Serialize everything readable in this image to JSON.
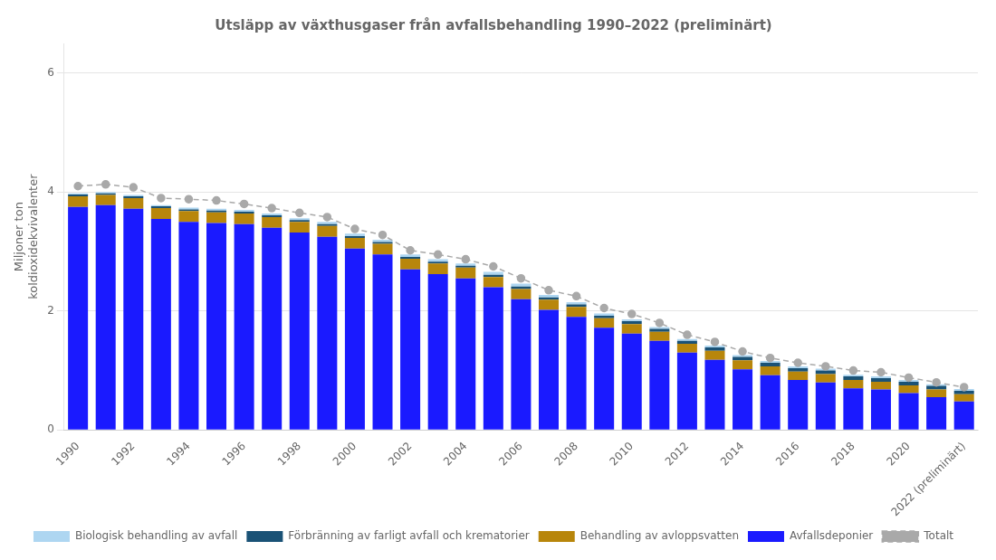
{
  "chart_data": {
    "type": "bar",
    "title": "Utsläpp av växthusgaser från avfallsbehandling 1990–2022 (preliminärt)",
    "y_label": "Miljoner ton\nkoldioxidekvivalenter",
    "categories": [
      "1990",
      null,
      "1992",
      null,
      "1994",
      null,
      "1996",
      null,
      "1998",
      null,
      "2000",
      null,
      "2002",
      null,
      "2004",
      null,
      "2006",
      null,
      "2008",
      null,
      "2010",
      null,
      "2012",
      null,
      "2014",
      null,
      "2016",
      null,
      "2018",
      null,
      "2020",
      null,
      "2022 (preliminärt)"
    ],
    "series": [
      {
        "name": "Avfallsdeponier",
        "type": "bar",
        "color": "#1a1aff",
        "values": [
          3.75,
          3.78,
          3.72,
          3.55,
          3.5,
          3.48,
          3.46,
          3.4,
          3.32,
          3.25,
          3.05,
          2.95,
          2.7,
          2.62,
          2.55,
          2.4,
          2.2,
          2.02,
          1.9,
          1.72,
          1.62,
          1.5,
          1.3,
          1.18,
          1.02,
          0.92,
          0.84,
          0.8,
          0.7,
          0.68,
          0.62,
          0.55,
          0.48
        ]
      },
      {
        "name": "Behandling av avloppsvatten",
        "type": "bar",
        "color": "#B8860B",
        "values": [
          0.18,
          0.17,
          0.18,
          0.18,
          0.18,
          0.18,
          0.18,
          0.18,
          0.18,
          0.18,
          0.18,
          0.18,
          0.18,
          0.18,
          0.18,
          0.17,
          0.17,
          0.17,
          0.17,
          0.16,
          0.16,
          0.15,
          0.15,
          0.15,
          0.15,
          0.15,
          0.14,
          0.14,
          0.14,
          0.13,
          0.13,
          0.13,
          0.12
        ]
      },
      {
        "name": "Förbränning av farligt avfall och krematorier",
        "type": "bar",
        "color": "#1a5276",
        "values": [
          0.03,
          0.03,
          0.03,
          0.03,
          0.03,
          0.03,
          0.03,
          0.03,
          0.03,
          0.03,
          0.03,
          0.03,
          0.03,
          0.03,
          0.03,
          0.04,
          0.04,
          0.04,
          0.04,
          0.04,
          0.05,
          0.05,
          0.05,
          0.06,
          0.06,
          0.06,
          0.06,
          0.06,
          0.06,
          0.06,
          0.06,
          0.06,
          0.06
        ]
      },
      {
        "name": "Biologisk behandling av avfall",
        "type": "bar",
        "color": "#AED6F1",
        "values": [
          0.02,
          0.02,
          0.02,
          0.02,
          0.03,
          0.03,
          0.03,
          0.03,
          0.03,
          0.04,
          0.04,
          0.04,
          0.04,
          0.04,
          0.04,
          0.05,
          0.05,
          0.04,
          0.04,
          0.04,
          0.03,
          0.03,
          0.03,
          0.03,
          0.03,
          0.03,
          0.03,
          0.03,
          0.03,
          0.03,
          0.03,
          0.03,
          0.03
        ]
      },
      {
        "name": "Totalt",
        "type": "line",
        "color": "#A9A9A9",
        "line_style": "dashed",
        "marker": "circle",
        "values": [
          4.1,
          4.13,
          4.08,
          3.9,
          3.88,
          3.86,
          3.8,
          3.73,
          3.65,
          3.58,
          3.38,
          3.28,
          3.02,
          2.95,
          2.87,
          2.75,
          2.55,
          2.35,
          2.25,
          2.05,
          1.95,
          1.8,
          1.6,
          1.48,
          1.32,
          1.21,
          1.13,
          1.07,
          1.0,
          0.97,
          0.88,
          0.8,
          0.72
        ]
      }
    ],
    "stacked": true,
    "ylim": [
      0,
      6.5
    ],
    "yticks": [
      0,
      2,
      4,
      6
    ],
    "grid": true,
    "legend": "bottom"
  }
}
